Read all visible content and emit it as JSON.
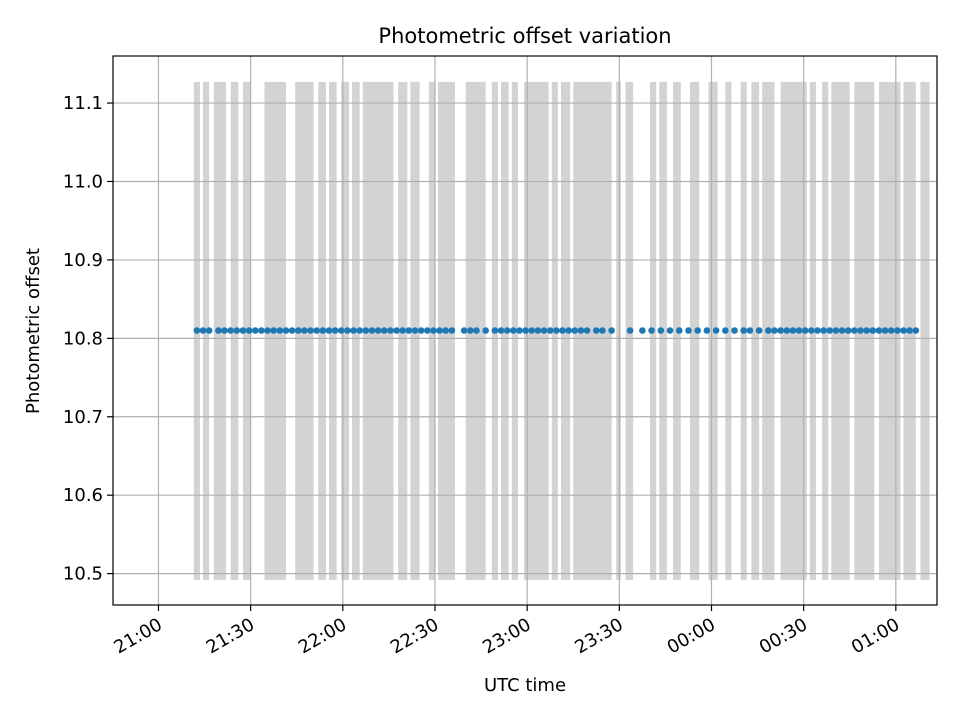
{
  "chart_data": {
    "type": "scatter",
    "title": "Photometric offset variation",
    "xlabel": "UTC time",
    "ylabel": "Photometric offset",
    "x_units": "minutes after 21:00 UTC",
    "xlim": [
      -14.8,
      253.4
    ],
    "ylim": [
      10.46,
      11.16
    ],
    "x_ticks": [
      {
        "value": 0,
        "label": "21:00"
      },
      {
        "value": 30,
        "label": "21:30"
      },
      {
        "value": 60,
        "label": "22:00"
      },
      {
        "value": 90,
        "label": "22:30"
      },
      {
        "value": 120,
        "label": "23:00"
      },
      {
        "value": 150,
        "label": "23:30"
      },
      {
        "value": 180,
        "label": "00:00"
      },
      {
        "value": 210,
        "label": "00:30"
      },
      {
        "value": 240,
        "label": "01:00"
      }
    ],
    "y_ticks": [
      {
        "value": 10.5,
        "label": "10.5"
      },
      {
        "value": 10.6,
        "label": "10.6"
      },
      {
        "value": 10.7,
        "label": "10.7"
      },
      {
        "value": 10.8,
        "label": "10.8"
      },
      {
        "value": 10.9,
        "label": "10.9"
      },
      {
        "value": 11.0,
        "label": "11.0"
      },
      {
        "value": 11.1,
        "label": "11.1"
      }
    ],
    "grid": true,
    "series": [
      {
        "color": "#1f77b4",
        "y": 10.81,
        "x": [
          12.5,
          14.5,
          16.5,
          19.5,
          21.5,
          23.5,
          25.5,
          27.5,
          29.5,
          31.5,
          33.5,
          39.5,
          41.5,
          43.5,
          45.5,
          47.5,
          51.5,
          53.5,
          55.5,
          57.5,
          59.5,
          61.5,
          63.5,
          65.5,
          67.5,
          69.5,
          71.5,
          73.5,
          75.5,
          77.5,
          79.5,
          81.5,
          83.5,
          85.5,
          87.5,
          89.5,
          91.5,
          93.5,
          95.5,
          99.5,
          101.5,
          106.5,
          109.5,
          111.5,
          113.5,
          115.5,
          117.5,
          119.5,
          121.5,
          123.5,
          125.5,
          127.5,
          129.5,
          131.5,
          133.5,
          135.5,
          137.5,
          139.5,
          142.5,
          144.5,
          153.5,
          157.5,
          160.5,
          163.5,
          166.5,
          172.5,
          178.5,
          184.5,
          190.5,
          192.5,
          198.5,
          200.5,
          202.5,
          204.5,
          206.5,
          208.5,
          210.5,
          212.5,
          214.5,
          216.5,
          218.5,
          220.5,
          222.5,
          224.5,
          226.5,
          228.5,
          230.5,
          232.5,
          234.5,
          236.5,
          238.5,
          240.5,
          242.5,
          244.5,
          246.5
        ],
        "x_extra": [
          35.5,
          37.5,
          49.5,
          103.5,
          147.5,
          169.5,
          175.5,
          181.5,
          187.5,
          195.5
        ]
      }
    ],
    "shaded_y_range": [
      10.492,
      11.127
    ],
    "shaded_color": "#d3d3d3",
    "shaded_intervals": [
      [
        11.5,
        13.5
      ],
      [
        14.5,
        16.5
      ],
      [
        18.0,
        22.0
      ],
      [
        23.5,
        26.0
      ],
      [
        27.5,
        30.0
      ],
      [
        34.5,
        41.5
      ],
      [
        44.5,
        50.5
      ],
      [
        52.0,
        54.5
      ],
      [
        55.5,
        58.0
      ],
      [
        59.5,
        62.0
      ],
      [
        63.0,
        65.5
      ],
      [
        66.5,
        76.5
      ],
      [
        78.0,
        81.0
      ],
      [
        82.0,
        85.0
      ],
      [
        88.0,
        90.0
      ],
      [
        91.0,
        96.5
      ],
      [
        100.0,
        106.5
      ],
      [
        108.5,
        110.5
      ],
      [
        111.5,
        114.0
      ],
      [
        115.0,
        117.0
      ],
      [
        119.0,
        127.0
      ],
      [
        128.0,
        130.0
      ],
      [
        131.0,
        134.0
      ],
      [
        135.0,
        147.5
      ],
      [
        149.0,
        150.5
      ],
      [
        152.0,
        154.5
      ],
      [
        160.0,
        162.0
      ],
      [
        163.0,
        165.5
      ],
      [
        167.5,
        170.0
      ],
      [
        173.0,
        176.0
      ],
      [
        179.0,
        182.0
      ],
      [
        184.5,
        186.5
      ],
      [
        189.5,
        191.5
      ],
      [
        193.0,
        195.5
      ],
      [
        196.5,
        200.5
      ],
      [
        202.5,
        211.0
      ],
      [
        212.0,
        214.0
      ],
      [
        216.0,
        218.0
      ],
      [
        219.0,
        225.0
      ],
      [
        226.5,
        233.0
      ],
      [
        234.5,
        241.5
      ],
      [
        242.5,
        246.5
      ],
      [
        248.0,
        251.0
      ]
    ]
  }
}
